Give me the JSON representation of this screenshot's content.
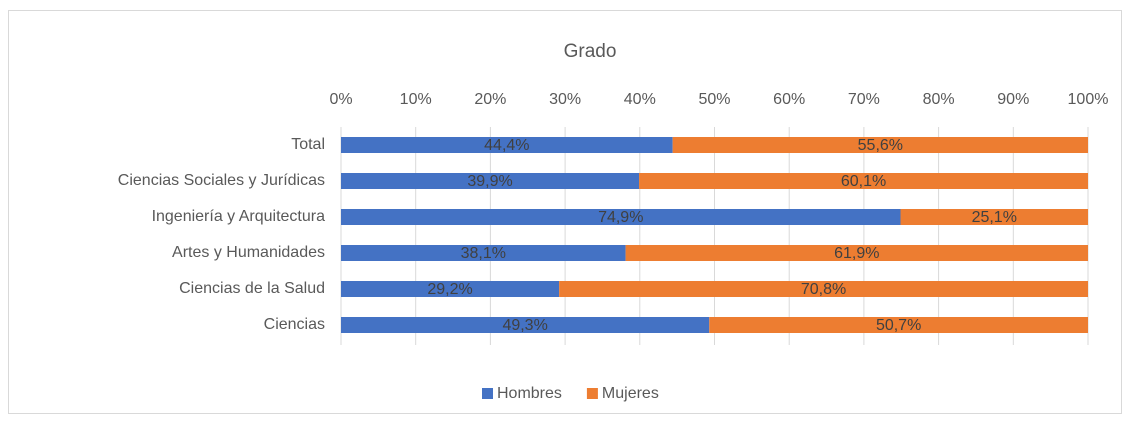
{
  "chart_data": {
    "type": "stacked_bar_horizontal",
    "title": "Grado",
    "categories": [
      "Total",
      "Ciencias Sociales y Jurídicas",
      "Ingeniería y Arquitectura",
      "Artes y Humanidades",
      "Ciencias de la Salud",
      "Ciencias"
    ],
    "series": [
      {
        "name": "Hombres",
        "color": "#4472c4",
        "values": [
          44.4,
          39.9,
          74.9,
          38.1,
          29.2,
          49.3
        ],
        "value_labels": [
          "44,4%",
          "39,9%",
          "74,9%",
          "38,1%",
          "29,2%",
          "49,3%"
        ]
      },
      {
        "name": "Mujeres",
        "color": "#ed7d31",
        "values": [
          55.6,
          60.1,
          25.1,
          61.9,
          70.8,
          50.7
        ],
        "value_labels": [
          "55,6%",
          "60,1%",
          "25,1%",
          "61,9%",
          "70,8%",
          "50,7%"
        ]
      }
    ],
    "xlim": [
      0,
      100
    ],
    "xticks": [
      {
        "value": 0,
        "label": "0%"
      },
      {
        "value": 10,
        "label": "10%"
      },
      {
        "value": 20,
        "label": "20%"
      },
      {
        "value": 30,
        "label": "30%"
      },
      {
        "value": 40,
        "label": "40%"
      },
      {
        "value": 50,
        "label": "50%"
      },
      {
        "value": 60,
        "label": "60%"
      },
      {
        "value": 70,
        "label": "70%"
      },
      {
        "value": 80,
        "label": "80%"
      },
      {
        "value": 90,
        "label": "90%"
      },
      {
        "value": 100,
        "label": "100%"
      }
    ],
    "grid": true,
    "legend": "bottom"
  }
}
